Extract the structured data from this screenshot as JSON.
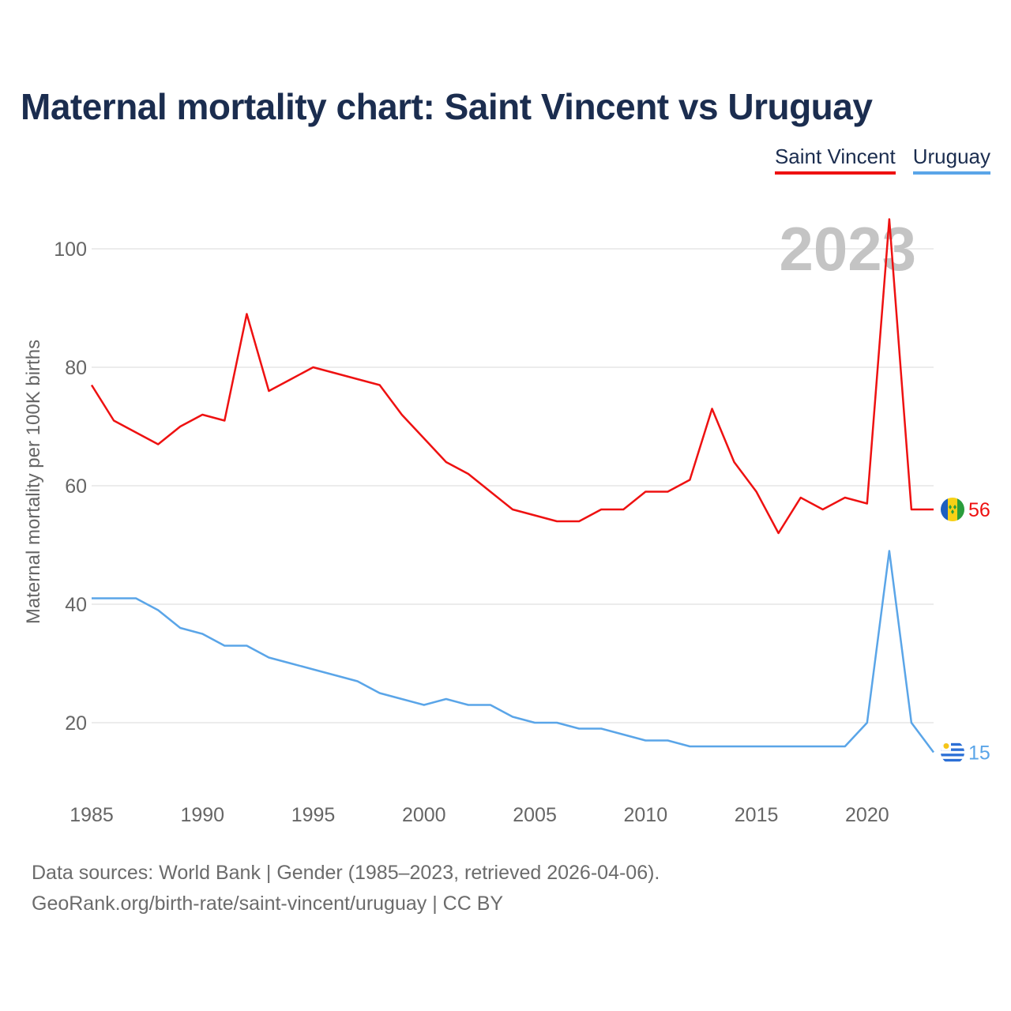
{
  "title": "Maternal mortality chart: Saint Vincent vs Uruguay",
  "legend": [
    {
      "label": "Saint Vincent",
      "color": "#ee1111"
    },
    {
      "label": "Uruguay",
      "color": "#5aa5e8"
    }
  ],
  "year_watermark": "2023",
  "footer": {
    "line1": "Data sources: World Bank | Gender (1985–2023, retrieved 2026-04-06).",
    "line2": "GeoRank.org/birth-rate/saint-vincent/uruguay | CC BY"
  },
  "chart_data": {
    "type": "line",
    "title": "Maternal mortality chart: Saint Vincent vs Uruguay",
    "xlabel": "",
    "ylabel": "Maternal mortality per 100K births",
    "xlim": [
      1985,
      2023
    ],
    "ylim": [
      10,
      110
    ],
    "x_ticks": [
      1985,
      1990,
      1995,
      2000,
      2005,
      2010,
      2015,
      2020
    ],
    "y_ticks": [
      20,
      40,
      60,
      80,
      100
    ],
    "grid": true,
    "x": [
      1985,
      1986,
      1987,
      1988,
      1989,
      1990,
      1991,
      1992,
      1993,
      1994,
      1995,
      1996,
      1997,
      1998,
      1999,
      2000,
      2001,
      2002,
      2003,
      2004,
      2005,
      2006,
      2007,
      2008,
      2009,
      2010,
      2011,
      2012,
      2013,
      2014,
      2015,
      2016,
      2017,
      2018,
      2019,
      2020,
      2021,
      2022,
      2023
    ],
    "series": [
      {
        "name": "Saint Vincent",
        "color": "#ee1111",
        "end_label": "56",
        "flag": "saint-vincent-flag-icon",
        "values": [
          77,
          71,
          69,
          67,
          70,
          72,
          71,
          89,
          76,
          78,
          80,
          79,
          78,
          77,
          72,
          68,
          64,
          62,
          59,
          56,
          55,
          54,
          54,
          56,
          56,
          59,
          59,
          61,
          73,
          64,
          59,
          52,
          58,
          56,
          58,
          57,
          105,
          56,
          56
        ]
      },
      {
        "name": "Uruguay",
        "color": "#5aa5e8",
        "end_label": "15",
        "flag": "uruguay-flag-icon",
        "values": [
          41,
          41,
          41,
          39,
          36,
          35,
          33,
          33,
          31,
          30,
          29,
          28,
          27,
          25,
          24,
          23,
          24,
          23,
          23,
          21,
          20,
          20,
          19,
          19,
          18,
          17,
          17,
          16,
          16,
          16,
          16,
          16,
          16,
          16,
          16,
          20,
          49,
          20,
          15
        ]
      }
    ]
  }
}
